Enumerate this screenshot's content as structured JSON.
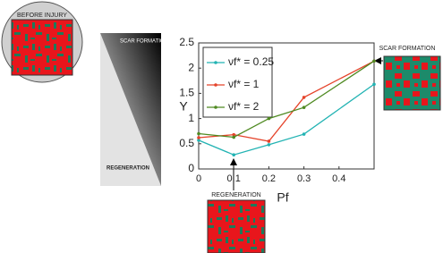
{
  "chart_data": {
    "type": "line",
    "ylabel": "Υ",
    "xlabel": "Pf",
    "x": [
      0,
      0.1,
      0.2,
      0.3,
      0.5
    ],
    "series": [
      {
        "name": "νf* = 0.25",
        "color": "#22b3b3",
        "values": [
          0.57,
          0.28,
          0.48,
          0.69,
          1.68
        ]
      },
      {
        "name": "νf* = 1",
        "color": "#e5432a",
        "values": [
          0.62,
          0.68,
          0.55,
          1.42,
          2.14
        ]
      },
      {
        "name": "νf* = 2",
        "color": "#4f8a22",
        "values": [
          0.7,
          0.63,
          1.0,
          1.22,
          2.14
        ]
      }
    ],
    "xlim": [
      0,
      0.5
    ],
    "ylim": [
      0,
      2.5
    ],
    "xticks": [
      0,
      0.1,
      0.2,
      0.3,
      0.4
    ],
    "yticks": [
      0,
      0.5,
      1,
      1.5,
      2,
      2.5
    ],
    "annotations": {
      "before": "BEFORE INJURY",
      "scar_top": "SCAR FORMATION",
      "regen_bottom": "REGENERATION",
      "scar_image": "SCAR FORMATION",
      "regen_image": "REGENERATION"
    }
  }
}
